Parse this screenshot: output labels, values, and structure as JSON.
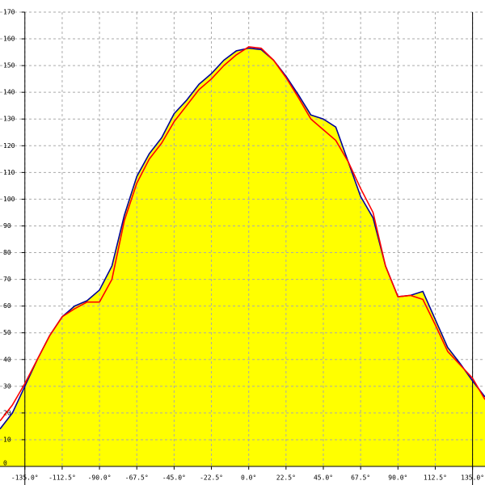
{
  "chart_data": {
    "type": "line",
    "x": [
      -150,
      -142.5,
      -135,
      -127.5,
      -120,
      -112.5,
      -105,
      -97.5,
      -90,
      -82.5,
      -75,
      -67.5,
      -60,
      -52.5,
      -45,
      -37.5,
      -30,
      -22.5,
      -15,
      -7.5,
      0,
      7.5,
      15,
      22.5,
      30,
      37.5,
      45,
      52.5,
      60,
      67.5,
      75,
      82.5,
      90,
      97.5,
      105,
      112.5,
      120,
      127.5,
      135,
      142.5
    ],
    "series": [
      {
        "color": "#000099",
        "fill": "#ffff00",
        "values": [
          14,
          20,
          30,
          40,
          49,
          56,
          60,
          62,
          66,
          75,
          94,
          108.5,
          117,
          123,
          132,
          137,
          143,
          147,
          152,
          155.5,
          156.5,
          156,
          152,
          146,
          139,
          131.5,
          130,
          127,
          114,
          101,
          93,
          75,
          63.5,
          64,
          65.5,
          55,
          44.5,
          38.5,
          32,
          26
        ]
      },
      {
        "color": "#ff0000",
        "values": [
          17,
          23,
          31,
          40,
          49,
          56,
          59,
          61.5,
          61.5,
          70,
          92,
          106,
          115,
          121,
          129,
          135,
          141,
          145,
          150,
          154,
          157,
          156.5,
          152,
          145.5,
          138,
          130,
          126,
          122,
          114,
          104,
          95,
          75,
          63.5,
          64,
          62.5,
          53,
          43,
          38,
          33,
          25
        ]
      }
    ],
    "xlim": [
      -150,
      142.5
    ],
    "ylim": [
      0,
      170
    ],
    "xticks": [
      {
        "value": -135,
        "label": "-135.0°"
      },
      {
        "value": -112.5,
        "label": "-112.5°"
      },
      {
        "value": -90,
        "label": "-90.0°"
      },
      {
        "value": -67.5,
        "label": "-67.5°"
      },
      {
        "value": -45,
        "label": "-45.0°"
      },
      {
        "value": -22.5,
        "label": "-22.5°"
      },
      {
        "value": 0,
        "label": "0.0°"
      },
      {
        "value": 22.5,
        "label": "22.5°"
      },
      {
        "value": 45,
        "label": "45.0°"
      },
      {
        "value": 67.5,
        "label": "67.5°"
      },
      {
        "value": 90,
        "label": "90.0°"
      },
      {
        "value": 112.5,
        "label": "112.5°"
      },
      {
        "value": 135,
        "label": "135.0°"
      }
    ],
    "yticks": [
      0,
      10,
      20,
      30,
      40,
      50,
      60,
      70,
      80,
      90,
      100,
      110,
      120,
      130,
      140,
      150,
      160,
      170
    ],
    "grid": true
  }
}
